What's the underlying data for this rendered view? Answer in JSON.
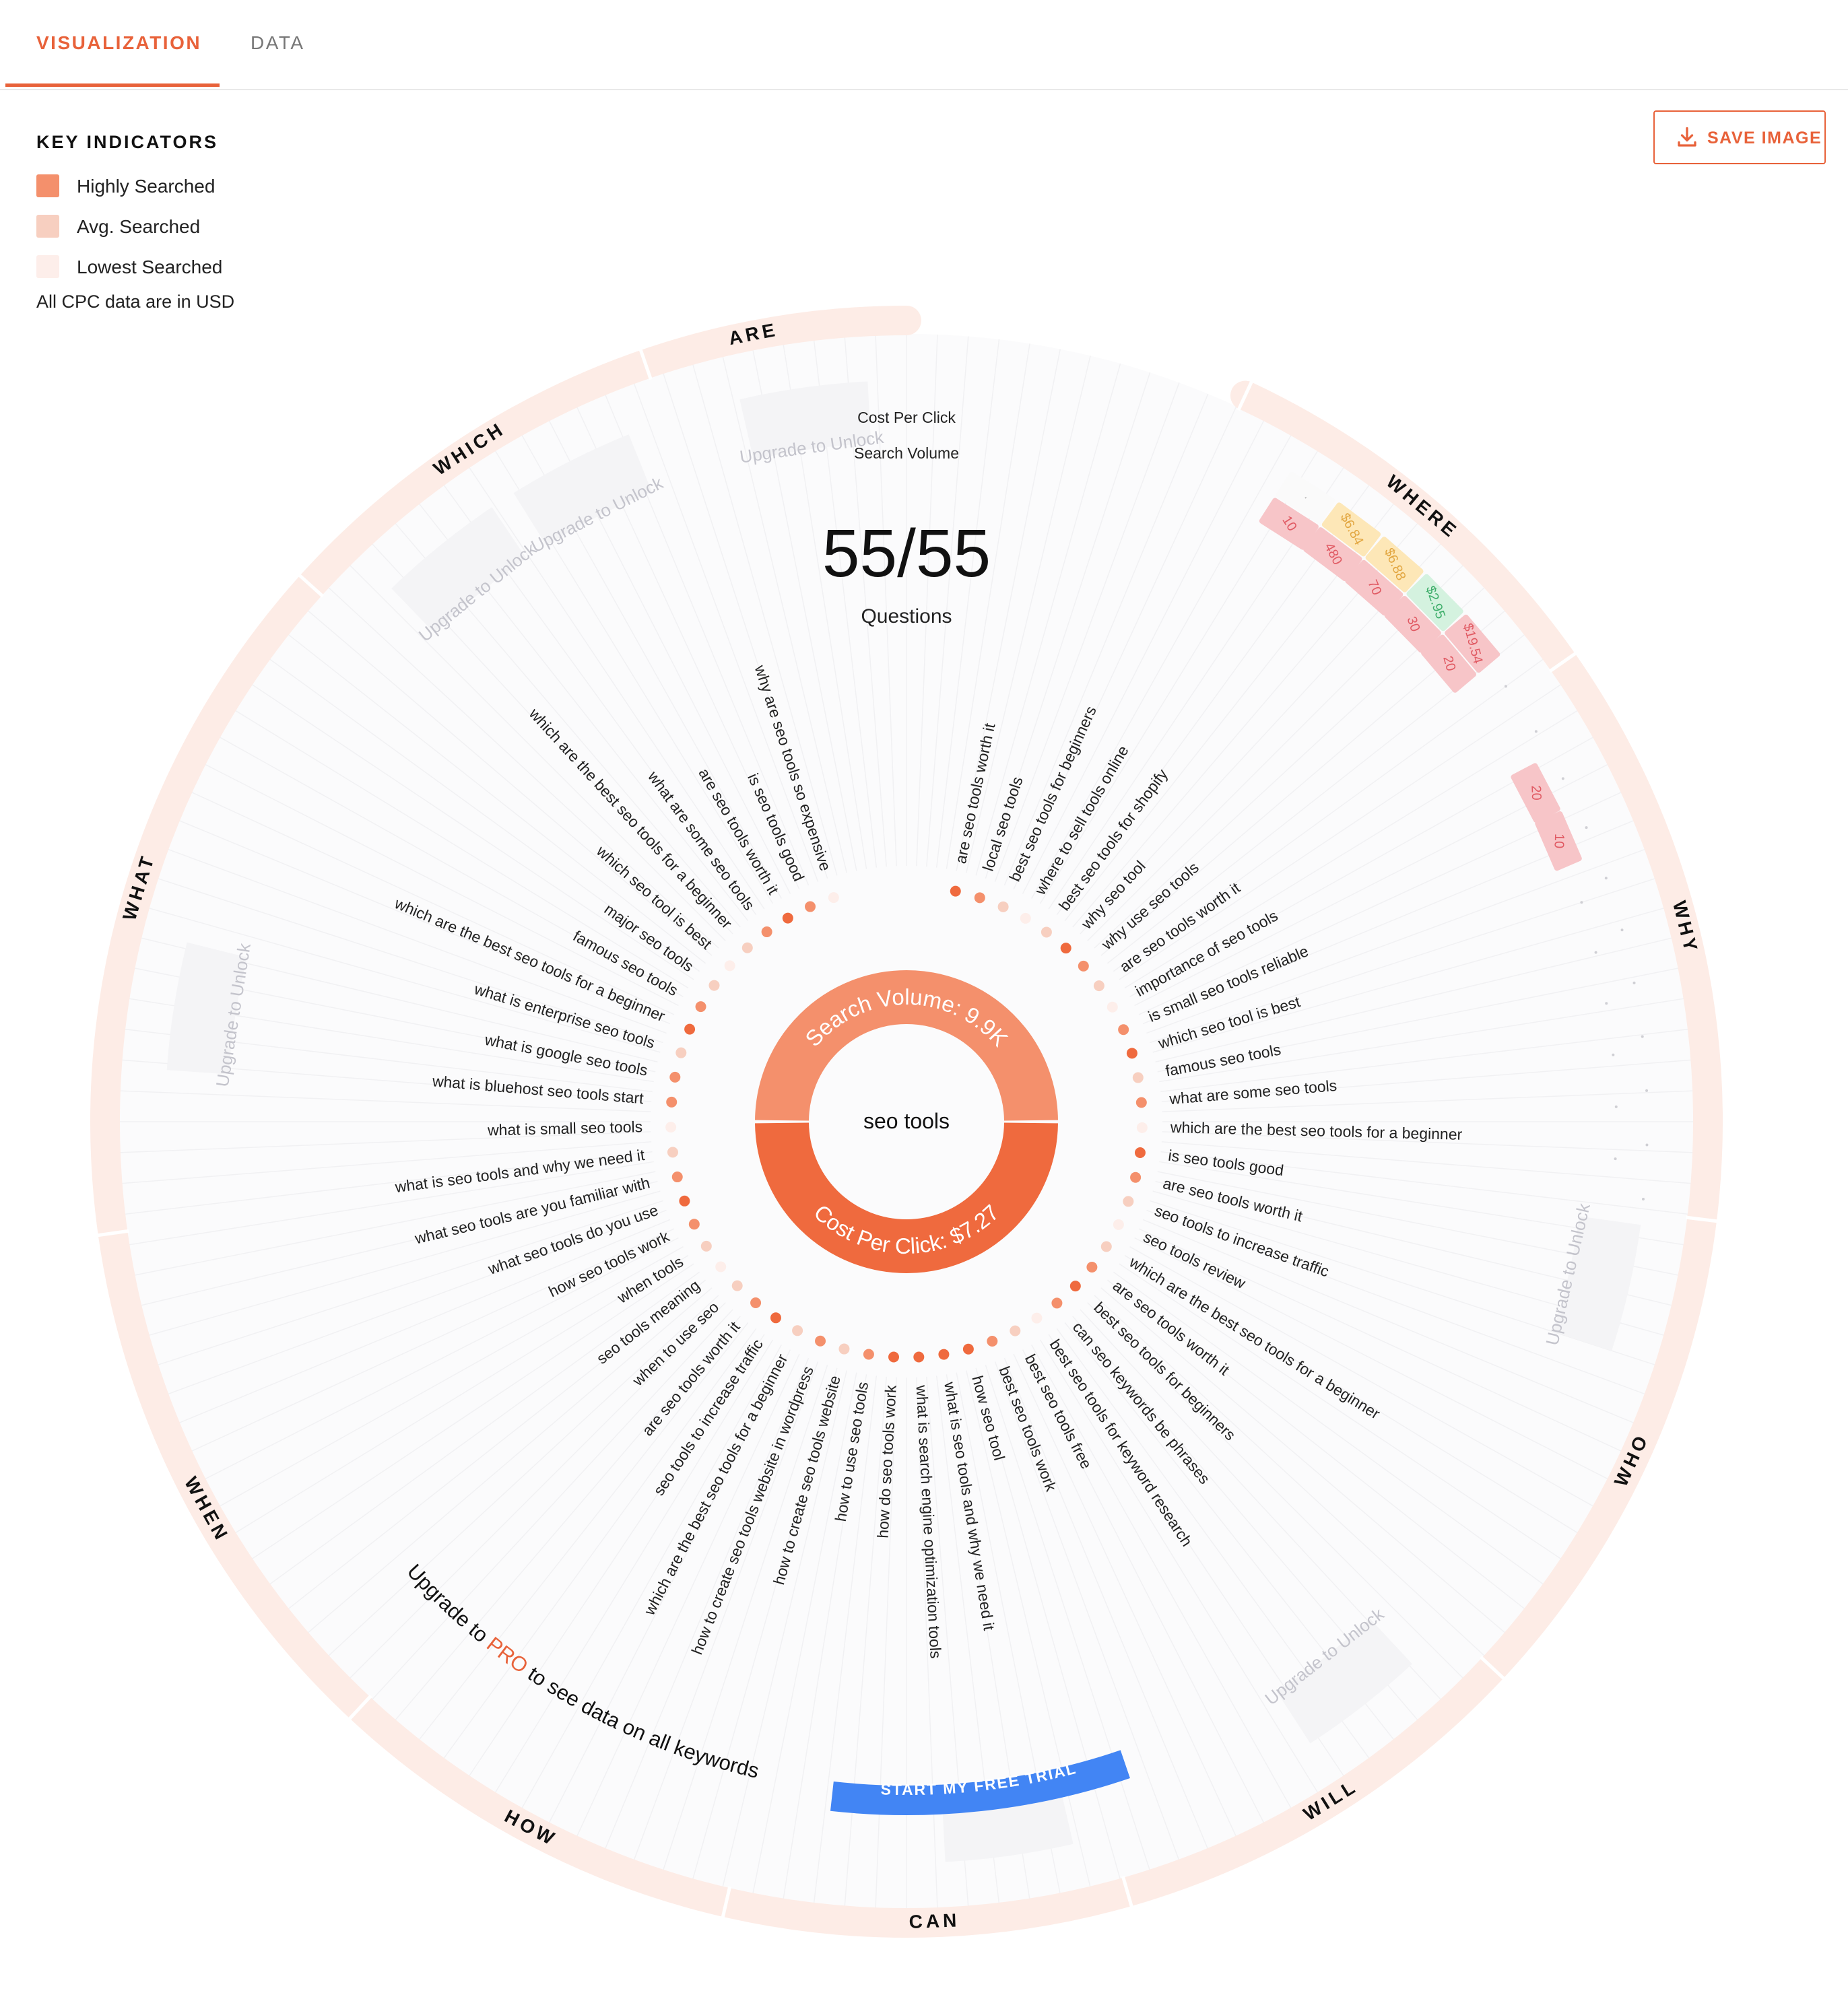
{
  "tabs": [
    {
      "label": "VISUALIZATION",
      "active": true
    },
    {
      "label": "DATA",
      "active": false
    }
  ],
  "legend": {
    "title": "KEY INDICATORS",
    "items": [
      {
        "label": "Highly Searched",
        "color": "#f4906c"
      },
      {
        "label": "Avg. Searched",
        "color": "#f7cfc0"
      },
      {
        "label": "Lowest Searched",
        "color": "#fdeeea"
      }
    ],
    "note": "All CPC data are in USD"
  },
  "save_button": {
    "label": "SAVE IMAGE",
    "icon": "download-icon"
  },
  "center": {
    "cpc_label": "Cost Per Click",
    "volume_label": "Search Volume",
    "count": "55/55",
    "count_label": "Questions",
    "keyword": "seo tools",
    "search_volume_text": "Search Volume: 9.9K",
    "cpc_text": "Cost Per Click: $7.27"
  },
  "colors": {
    "accent": "#e8623a",
    "ring_top": "#f4906c",
    "ring_bottom": "#ef6a3e",
    "outer_ring": "#fdece6",
    "cta_blue": "#4285f4",
    "vol_red": "#f7c5c8",
    "cpc_yellow": "#fde7b7",
    "cpc_green": "#d4f2df"
  },
  "categories": [
    "WHERE",
    "WHY",
    "WHO",
    "WILL",
    "CAN",
    "HOW",
    "WHEN",
    "WHAT",
    "WHICH",
    "ARE"
  ],
  "locked_label": "Upgrade to Unlock",
  "upgrade": {
    "before": "Upgrade to ",
    "pro": "PRO",
    "after": " to see data on all keywords",
    "cta": "START MY FREE TRIAL"
  },
  "questions": [
    "are seo tools worth it",
    "local seo tools",
    "best seo tools for beginners",
    "where to sell tools online",
    "best seo tools for shopify",
    "why seo tool",
    "why use seo tools",
    "are seo tools worth it",
    "importance of seo tools",
    "is small seo tools reliable",
    "which seo tool is best",
    "famous seo tools",
    "what are some seo tools",
    "which are the best seo tools for a beginner",
    "is seo tools good",
    "are seo tools worth it",
    "seo tools to increase traffic",
    "seo tools review",
    "which are the best seo tools for a beginner",
    "are seo tools worth it",
    "best seo tools for beginners",
    "can seo keywords be phrases",
    "best seo tools for keyword research",
    "best seo tools free",
    "best seo tools work",
    "how seo tool",
    "what is seo tools and why we need it",
    "what is search engine optimization tools",
    "how do seo tools work",
    "how to use seo tools",
    "how to create seo tools website",
    "how to create seo tools website in wordpress",
    "which are the best seo tools for a beginner",
    "seo tools to increase traffic",
    "are seo tools worth it",
    "when to use seo",
    "seo tools meaning",
    "when tools",
    "how seo tools work",
    "what seo tools do you use",
    "what seo tools are you familiar with",
    "what is seo tools and why we need it",
    "what is small seo tools",
    "what is bluehost seo tools start",
    "what is google seo tools",
    "what is enterprise seo tools",
    "which are the best seo tools for a beginner",
    "famous seo tools",
    "major seo tools",
    "which seo tool is best",
    "which are the best seo tools for a beginner",
    "what are some seo tools",
    "are seo tools worth it",
    "is seo tools good",
    "why are seo tools so expensive"
  ],
  "where_metrics": {
    "cpc": [
      "·",
      "$6.84",
      "$6.88",
      "$2.95",
      "$19.54"
    ],
    "volume": [
      "10",
      "480",
      "70",
      "30",
      "20"
    ]
  },
  "why_metrics": {
    "volume": [
      "20",
      "10"
    ]
  }
}
